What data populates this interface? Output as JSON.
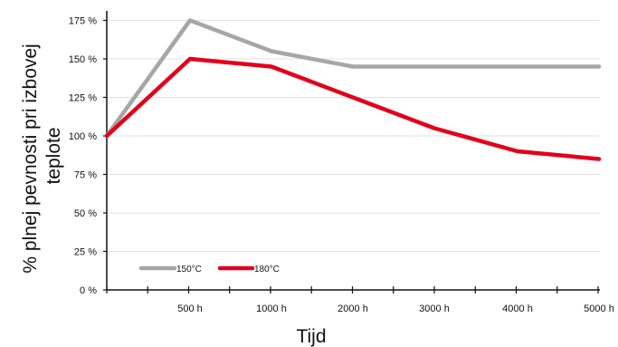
{
  "chart_data": {
    "type": "line",
    "xlabel": "Tijd",
    "ylabel_lines": [
      "% plnej pevnosti pri izbovej",
      "teplote"
    ],
    "categories": [
      "",
      "500 h",
      "1000 h",
      "2000 h",
      "3000 h",
      "4000 h",
      "5000 h"
    ],
    "y_ticks": [
      "0 %",
      "25 %",
      "50 %",
      "75 %",
      "100 %",
      "125 %",
      "150 %",
      "175 %"
    ],
    "ylim": [
      0,
      180
    ],
    "grid": "horizontal",
    "legend_position": "bottom-left",
    "series": [
      {
        "name": "150°C",
        "color": "#a6a6a6",
        "values": [
          100,
          175,
          155,
          145,
          145,
          145,
          145
        ]
      },
      {
        "name": "180°C",
        "color": "#e3001b",
        "values": [
          100,
          150,
          145,
          125,
          105,
          90,
          85
        ]
      }
    ]
  }
}
